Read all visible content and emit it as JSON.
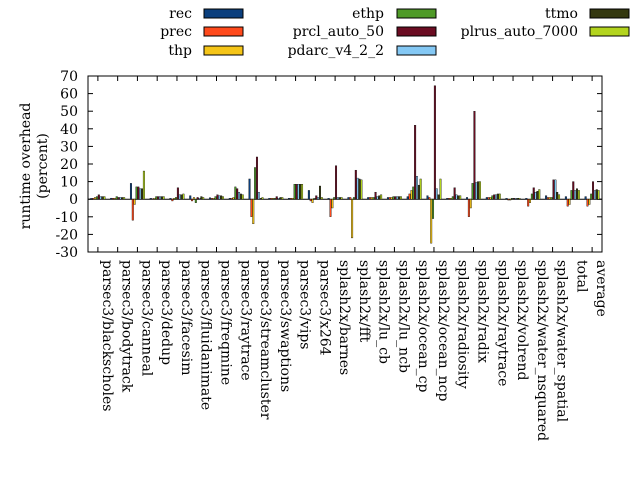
{
  "chart_data": {
    "type": "bar",
    "ylabel_line1": "runtime overhead",
    "ylabel_line2": "(percent)",
    "ylim": [
      -30,
      70
    ],
    "yticks": [
      -30,
      -20,
      -10,
      0,
      10,
      20,
      30,
      40,
      50,
      60,
      70
    ],
    "grid": false,
    "legend_position": "top",
    "categories": [
      "parsec3/blackscholes",
      "parsec3/bodytrack",
      "parsec3/canneal",
      "parsec3/dedup",
      "parsec3/facesim",
      "parsec3/fluidanimate",
      "parsec3/freqmine",
      "parsec3/raytrace",
      "parsec3/streamcluster",
      "parsec3/swaptions",
      "parsec3/vips",
      "parsec3/x264",
      "splash2x/barnes",
      "splash2x/fft",
      "splash2x/lu_cb",
      "splash2x/lu_ncb",
      "splash2x/ocean_cp",
      "splash2x/ocean_ncp",
      "splash2x/radiosity",
      "splash2x/radix",
      "splash2x/raytrace",
      "splash2x/volrend",
      "splash2x/water_nsquared",
      "splash2x/water_spatial",
      "total",
      "average"
    ],
    "series": [
      {
        "name": "rec",
        "color": "#0b3f7d",
        "values": [
          0.5,
          0.6,
          9,
          0.5,
          0.5,
          2,
          0.8,
          0.5,
          11.5,
          0.5,
          0.5,
          5,
          0.5,
          1,
          1,
          1,
          1.5,
          2,
          0.5,
          1,
          1,
          0.5,
          0.5,
          2,
          1.5,
          1.5
        ]
      },
      {
        "name": "prec",
        "color": "#ff4a1c",
        "values": [
          0.5,
          0.5,
          -12,
          0.3,
          -1,
          -1,
          0.5,
          0.5,
          -10,
          0.5,
          0.5,
          -1,
          -10,
          1,
          1,
          1,
          3,
          1,
          0.5,
          -10,
          1,
          -0.5,
          -4,
          1,
          -4,
          -4
        ]
      },
      {
        "name": "thp",
        "color": "#f5c518",
        "values": [
          1,
          0.5,
          -3,
          0.5,
          0.5,
          1,
          0.5,
          1,
          -14,
          0.5,
          0.5,
          -2,
          -5,
          -22,
          1,
          1,
          5,
          -25,
          0.5,
          -5,
          1,
          -0.5,
          -2,
          1,
          -3,
          -3
        ]
      },
      {
        "name": "ethp",
        "color": "#4f9a28",
        "values": [
          1.5,
          1.5,
          7,
          1.5,
          1,
          -2,
          1.5,
          7,
          18,
          0.5,
          8.5,
          0.5,
          1,
          1,
          1,
          1.5,
          7,
          -11,
          1.5,
          9,
          2,
          0.5,
          3,
          1,
          5,
          3
        ]
      },
      {
        "name": "prcl_auto_50",
        "color": "#6b0c22",
        "values": [
          2.5,
          1,
          7,
          1.5,
          6.5,
          1,
          2.5,
          6,
          24,
          1.5,
          8.5,
          2,
          19,
          16.5,
          4,
          1.5,
          42,
          64.5,
          6.5,
          50,
          2.5,
          0.5,
          6.5,
          11,
          10,
          10
        ]
      },
      {
        "name": "pdarc_v4_2_2",
        "color": "#84c8f4",
        "values": [
          1.5,
          1,
          6,
          1.5,
          2.5,
          0.5,
          2,
          4,
          4,
          0.5,
          8.5,
          1,
          1,
          12,
          1.5,
          1.5,
          13,
          6,
          2.5,
          9.5,
          2.5,
          0.5,
          4,
          11,
          5,
          5
        ]
      },
      {
        "name": "ttmo",
        "color": "#34380f",
        "values": [
          1.5,
          1,
          6,
          1.5,
          2.5,
          1.5,
          2,
          3,
          0.5,
          1,
          8.5,
          7.5,
          1,
          11.5,
          2,
          1.5,
          8,
          2.5,
          2,
          10,
          3,
          0.5,
          4.5,
          4,
          6,
          5.5
        ]
      },
      {
        "name": "plrus_auto_7000",
        "color": "#b3d41e",
        "values": [
          1.5,
          1,
          16,
          1.5,
          3,
          1,
          1.5,
          2.5,
          1,
          1,
          8.5,
          1,
          1,
          11,
          2.5,
          1.5,
          11.5,
          11.5,
          2,
          10,
          3,
          0.5,
          5.5,
          2.5,
          5,
          5
        ]
      }
    ]
  }
}
